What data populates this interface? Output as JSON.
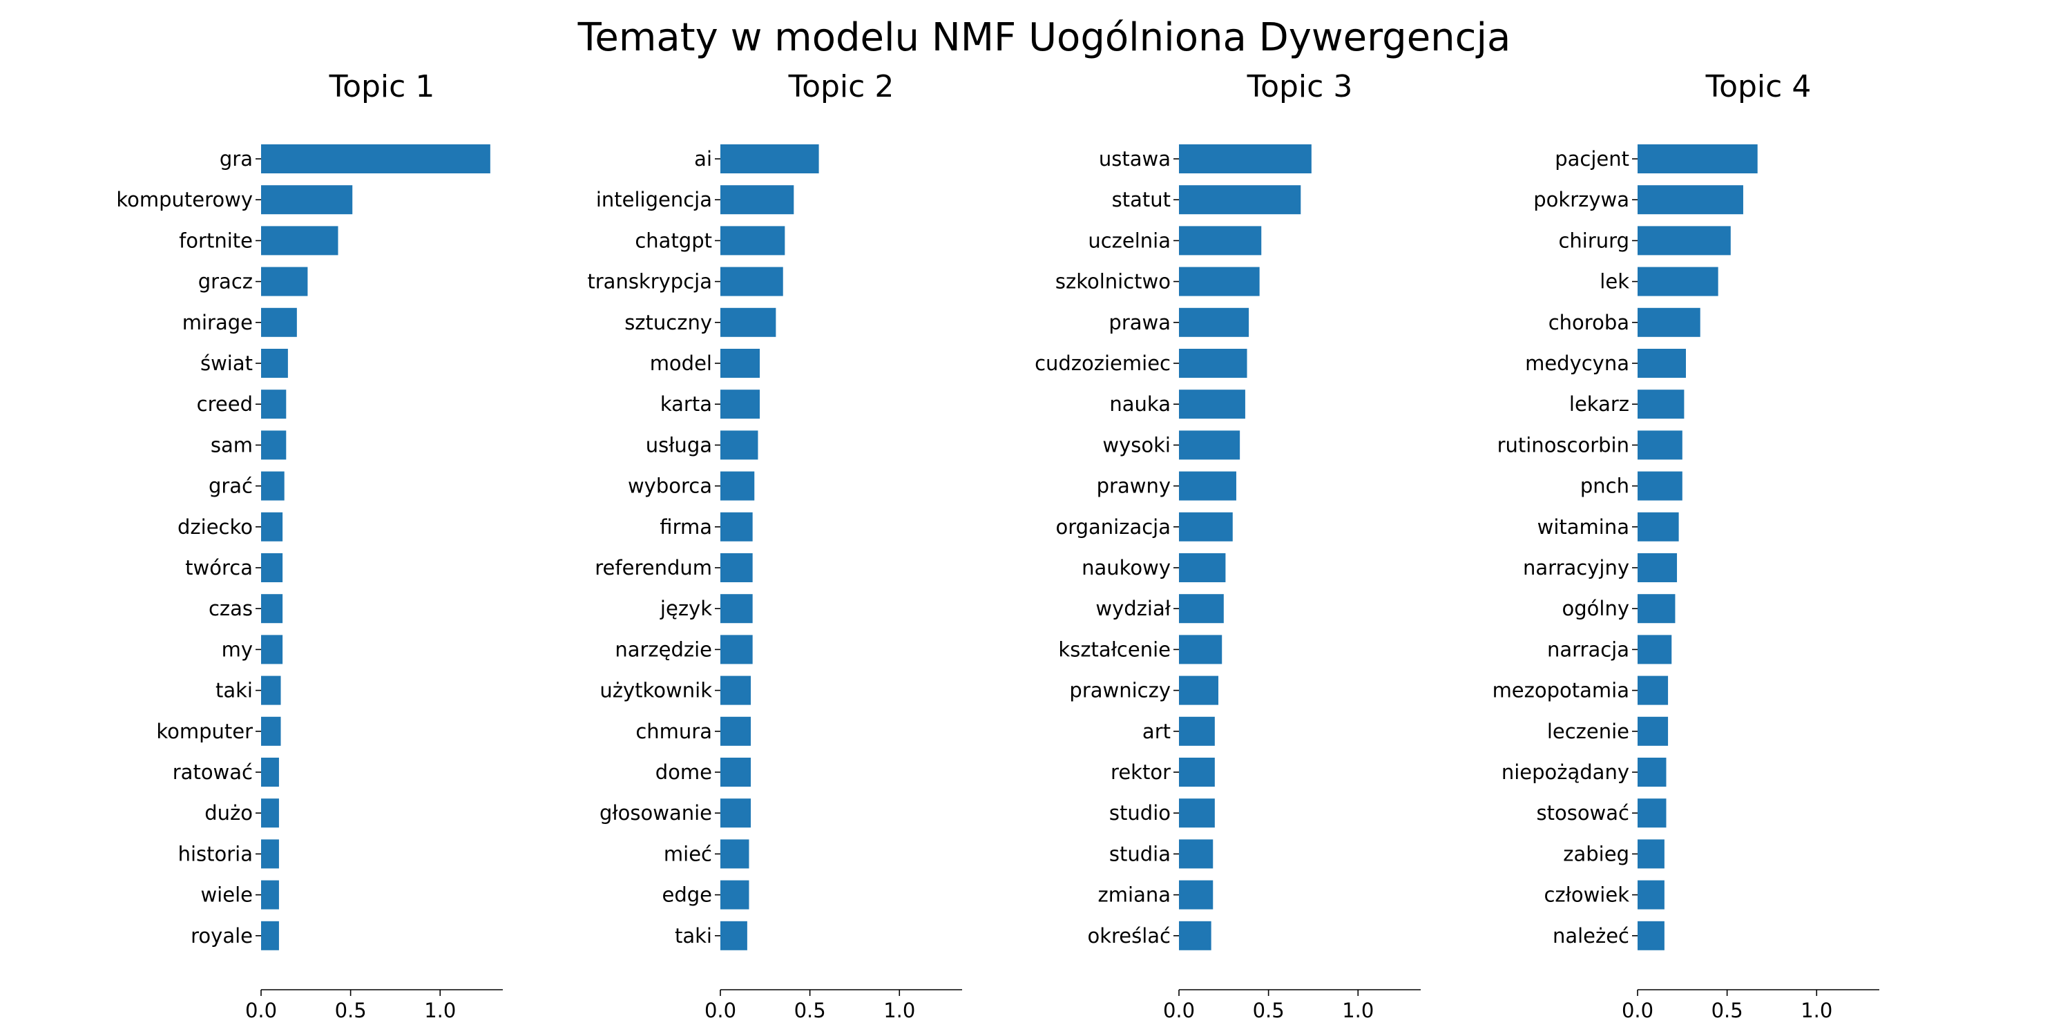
{
  "title": "Tematy w modelu NMF Uogólniona Dywergencja",
  "chart_data": [
    {
      "type": "bar",
      "orientation": "horizontal",
      "title": "Topic 1",
      "xlim": [
        0,
        1.35
      ],
      "xticks": [
        "0.0",
        "0.5",
        "1.0"
      ],
      "categories": [
        "gra",
        "komputerowy",
        "fortnite",
        "gracz",
        "mirage",
        "świat",
        "creed",
        "sam",
        "grać",
        "dziecko",
        "twórca",
        "czas",
        "my",
        "taki",
        "komputer",
        "ratować",
        "dużo",
        "historia",
        "wiele",
        "royale"
      ],
      "values": [
        1.28,
        0.51,
        0.43,
        0.26,
        0.2,
        0.15,
        0.14,
        0.14,
        0.13,
        0.12,
        0.12,
        0.12,
        0.12,
        0.11,
        0.11,
        0.1,
        0.1,
        0.1,
        0.1,
        0.1
      ]
    },
    {
      "type": "bar",
      "orientation": "horizontal",
      "title": "Topic 2",
      "xlim": [
        0,
        1.35
      ],
      "xticks": [
        "0.0",
        "0.5",
        "1.0"
      ],
      "categories": [
        "ai",
        "inteligencja",
        "chatgpt",
        "transkrypcja",
        "sztuczny",
        "model",
        "karta",
        "usługa",
        "wyborca",
        "firma",
        "referendum",
        "język",
        "narzędzie",
        "użytkownik",
        "chmura",
        "dome",
        "głosowanie",
        "mieć",
        "edge",
        "taki"
      ],
      "values": [
        0.55,
        0.41,
        0.36,
        0.35,
        0.31,
        0.22,
        0.22,
        0.21,
        0.19,
        0.18,
        0.18,
        0.18,
        0.18,
        0.17,
        0.17,
        0.17,
        0.17,
        0.16,
        0.16,
        0.15
      ]
    },
    {
      "type": "bar",
      "orientation": "horizontal",
      "title": "Topic 3",
      "xlim": [
        0,
        1.35
      ],
      "xticks": [
        "0.0",
        "0.5",
        "1.0"
      ],
      "categories": [
        "ustawa",
        "statut",
        "uczelnia",
        "szkolnictwo",
        "prawa",
        "cudzoziemiec",
        "nauka",
        "wysoki",
        "prawny",
        "organizacja",
        "naukowy",
        "wydział",
        "kształcenie",
        "prawniczy",
        "art",
        "rektor",
        "studio",
        "studia",
        "zmiana",
        "określać"
      ],
      "values": [
        0.74,
        0.68,
        0.46,
        0.45,
        0.39,
        0.38,
        0.37,
        0.34,
        0.32,
        0.3,
        0.26,
        0.25,
        0.24,
        0.22,
        0.2,
        0.2,
        0.2,
        0.19,
        0.19,
        0.18
      ]
    },
    {
      "type": "bar",
      "orientation": "horizontal",
      "title": "Topic 4",
      "xlim": [
        0,
        1.35
      ],
      "xticks": [
        "0.0",
        "0.5",
        "1.0"
      ],
      "categories": [
        "pacjent",
        "pokrzywa",
        "chirurg",
        "lek",
        "choroba",
        "medycyna",
        "lekarz",
        "rutinoscorbin",
        "pnch",
        "witamina",
        "narracyjny",
        "ogólny",
        "narracja",
        "mezopotamia",
        "leczenie",
        "niepożądany",
        "stosować",
        "zabieg",
        "człowiek",
        "należeć"
      ],
      "values": [
        0.67,
        0.59,
        0.52,
        0.45,
        0.35,
        0.27,
        0.26,
        0.25,
        0.25,
        0.23,
        0.22,
        0.21,
        0.19,
        0.17,
        0.17,
        0.16,
        0.16,
        0.15,
        0.15,
        0.15
      ]
    }
  ]
}
